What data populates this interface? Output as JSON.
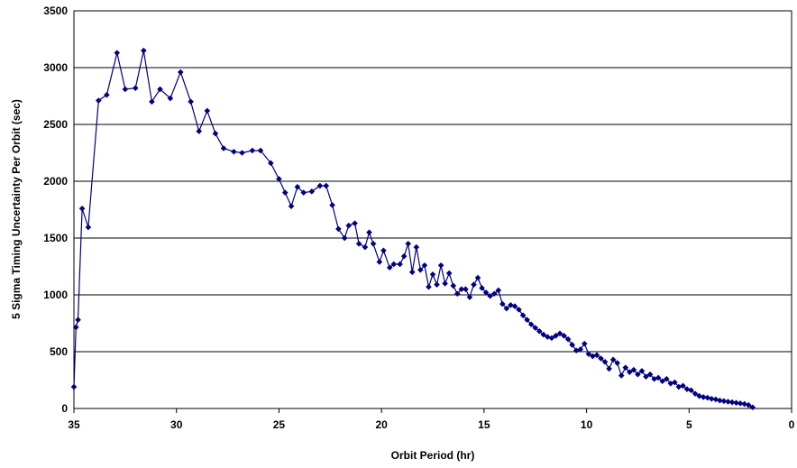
{
  "chart_data": {
    "type": "scatter",
    "xlabel": "Orbit Period (hr)",
    "ylabel": "5 Sigma Timing Uncertainty Per Orbit (sec)",
    "xlim": [
      35,
      0
    ],
    "ylim": [
      0,
      3500
    ],
    "x_reversed": true,
    "xticks": [
      "35",
      "30",
      "25",
      "20",
      "15",
      "10",
      "5",
      "0"
    ],
    "yticks": [
      "0",
      "500",
      "1000",
      "1500",
      "2000",
      "2500",
      "3000",
      "3500"
    ],
    "grid": "horizontal",
    "legend": "none",
    "series_color": "#000080",
    "series": [
      {
        "marker": "diamond",
        "line": "connected",
        "points": [
          [
            35.0,
            190
          ],
          [
            34.9,
            715
          ],
          [
            34.8,
            780
          ],
          [
            34.6,
            1760
          ],
          [
            34.3,
            1595
          ],
          [
            33.8,
            2710
          ],
          [
            33.4,
            2760
          ],
          [
            32.9,
            3130
          ],
          [
            32.5,
            2810
          ],
          [
            32.0,
            2820
          ],
          [
            31.6,
            3150
          ],
          [
            31.2,
            2700
          ],
          [
            30.8,
            2810
          ],
          [
            30.3,
            2730
          ],
          [
            29.8,
            2960
          ],
          [
            29.3,
            2700
          ],
          [
            28.9,
            2440
          ],
          [
            28.5,
            2620
          ],
          [
            28.1,
            2420
          ],
          [
            27.7,
            2290
          ],
          [
            27.2,
            2260
          ],
          [
            26.8,
            2250
          ],
          [
            26.3,
            2270
          ],
          [
            25.9,
            2270
          ],
          [
            25.4,
            2160
          ],
          [
            25.0,
            2020
          ],
          [
            24.7,
            1900
          ],
          [
            24.4,
            1780
          ],
          [
            24.1,
            1950
          ],
          [
            23.8,
            1900
          ],
          [
            23.4,
            1910
          ],
          [
            23.0,
            1960
          ],
          [
            22.7,
            1960
          ],
          [
            22.4,
            1790
          ],
          [
            22.1,
            1580
          ],
          [
            21.8,
            1500
          ],
          [
            21.6,
            1610
          ],
          [
            21.3,
            1630
          ],
          [
            21.1,
            1450
          ],
          [
            20.8,
            1420
          ],
          [
            20.6,
            1550
          ],
          [
            20.4,
            1450
          ],
          [
            20.1,
            1290
          ],
          [
            19.9,
            1390
          ],
          [
            19.6,
            1240
          ],
          [
            19.4,
            1270
          ],
          [
            19.1,
            1270
          ],
          [
            18.9,
            1340
          ],
          [
            18.7,
            1450
          ],
          [
            18.5,
            1200
          ],
          [
            18.3,
            1420
          ],
          [
            18.1,
            1220
          ],
          [
            17.9,
            1260
          ],
          [
            17.7,
            1070
          ],
          [
            17.5,
            1180
          ],
          [
            17.3,
            1090
          ],
          [
            17.1,
            1260
          ],
          [
            16.9,
            1100
          ],
          [
            16.7,
            1190
          ],
          [
            16.5,
            1080
          ],
          [
            16.3,
            1010
          ],
          [
            16.1,
            1050
          ],
          [
            15.9,
            1050
          ],
          [
            15.7,
            980
          ],
          [
            15.5,
            1090
          ],
          [
            15.3,
            1150
          ],
          [
            15.1,
            1060
          ],
          [
            14.9,
            1020
          ],
          [
            14.7,
            990
          ],
          [
            14.5,
            1010
          ],
          [
            14.3,
            1040
          ],
          [
            14.1,
            920
          ],
          [
            13.9,
            880
          ],
          [
            13.7,
            910
          ],
          [
            13.5,
            900
          ],
          [
            13.3,
            870
          ],
          [
            13.1,
            820
          ],
          [
            12.9,
            780
          ],
          [
            12.7,
            740
          ],
          [
            12.5,
            710
          ],
          [
            12.3,
            680
          ],
          [
            12.1,
            650
          ],
          [
            11.9,
            630
          ],
          [
            11.7,
            620
          ],
          [
            11.5,
            640
          ],
          [
            11.3,
            660
          ],
          [
            11.1,
            640
          ],
          [
            10.9,
            610
          ],
          [
            10.7,
            560
          ],
          [
            10.5,
            510
          ],
          [
            10.3,
            520
          ],
          [
            10.1,
            570
          ],
          [
            9.9,
            480
          ],
          [
            9.7,
            460
          ],
          [
            9.5,
            470
          ],
          [
            9.3,
            440
          ],
          [
            9.1,
            410
          ],
          [
            8.9,
            350
          ],
          [
            8.7,
            430
          ],
          [
            8.5,
            400
          ],
          [
            8.3,
            290
          ],
          [
            8.1,
            360
          ],
          [
            7.9,
            320
          ],
          [
            7.7,
            340
          ],
          [
            7.5,
            300
          ],
          [
            7.3,
            330
          ],
          [
            7.1,
            280
          ],
          [
            6.9,
            300
          ],
          [
            6.7,
            260
          ],
          [
            6.5,
            270
          ],
          [
            6.3,
            240
          ],
          [
            6.1,
            260
          ],
          [
            5.9,
            220
          ],
          [
            5.7,
            230
          ],
          [
            5.5,
            190
          ],
          [
            5.3,
            200
          ],
          [
            5.1,
            170
          ],
          [
            4.9,
            160
          ],
          [
            4.7,
            130
          ],
          [
            4.5,
            110
          ],
          [
            4.3,
            100
          ],
          [
            4.1,
            95
          ],
          [
            3.9,
            85
          ],
          [
            3.7,
            80
          ],
          [
            3.5,
            70
          ],
          [
            3.3,
            65
          ],
          [
            3.1,
            60
          ],
          [
            2.9,
            55
          ],
          [
            2.7,
            50
          ],
          [
            2.5,
            45
          ],
          [
            2.3,
            40
          ],
          [
            2.1,
            30
          ],
          [
            1.9,
            10
          ]
        ]
      }
    ]
  }
}
